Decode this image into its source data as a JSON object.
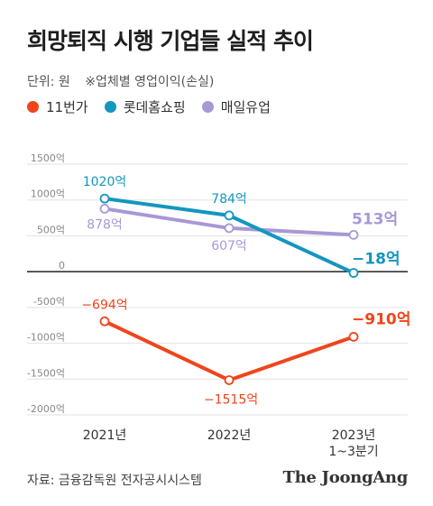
{
  "title": "희망퇴직 시행 기업들 실적 추이",
  "unit_label": "단위: 원",
  "note_label": "※업체별 영업이익(손실)",
  "source": "자료: 금융감독원 전자공시시스템",
  "brand": "The JoongAng",
  "colors": {
    "series_11st": "#f0441b",
    "series_lotte": "#1396bf",
    "series_maeil": "#a898d6",
    "axis": "#111111",
    "grid": "#e3e3e3",
    "tick_text": "#888888"
  },
  "chart_data": {
    "type": "line",
    "title": "희망퇴직 시행 기업들 실적 추이",
    "categories": [
      "2021년",
      "2022년",
      "2023년\n1~3분기"
    ],
    "ylabel": "",
    "ylim": [
      -2000,
      1500
    ],
    "yticks": [
      1500,
      1000,
      500,
      0,
      -500,
      -1000,
      -1500,
      -2000
    ],
    "ytick_labels": [
      "1500억",
      "1000억",
      "500억",
      "0",
      "-500억",
      "-1000억",
      "-1500억",
      "-2000억"
    ],
    "legend_position": "top-left",
    "grid": true,
    "series": [
      {
        "name": "11번가",
        "color": "#f0441b",
        "values": [
          -694,
          -1515,
          -910
        ],
        "labels": [
          "−694억",
          "−1515억",
          "−910억"
        ]
      },
      {
        "name": "롯데홈쇼핑",
        "color": "#1396bf",
        "values": [
          1020,
          784,
          -18
        ],
        "labels": [
          "1020억",
          "784억",
          "−18억"
        ]
      },
      {
        "name": "매일유업",
        "color": "#a898d6",
        "values": [
          878,
          607,
          513
        ],
        "labels": [
          "878억",
          "607억",
          "513억"
        ]
      }
    ]
  }
}
